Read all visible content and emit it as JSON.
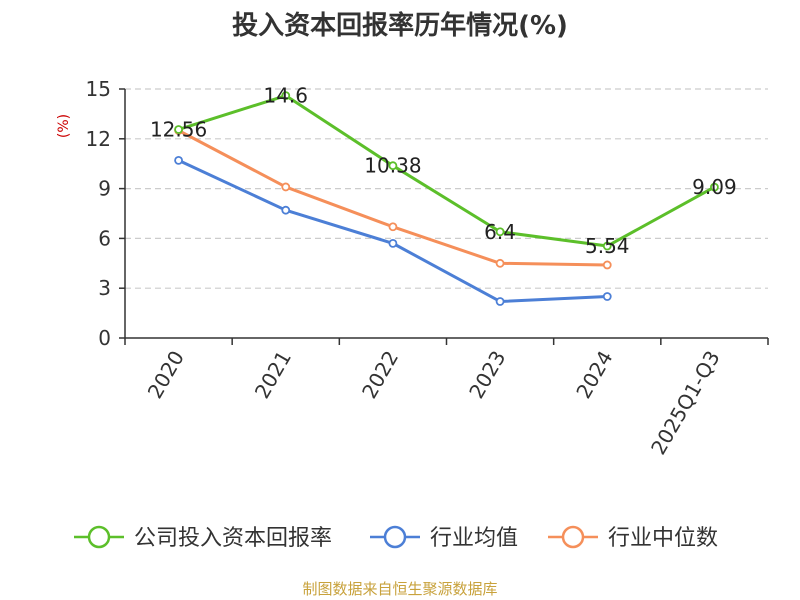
{
  "colors": {
    "axis": "#333333",
    "grid": "#cccccc",
    "source": "#c8a23c",
    "ylabel": "#cc0000"
  },
  "chart_data": {
    "type": "line",
    "title": "投入资本回报率历年情况(%)",
    "ylabel": "(%)",
    "xlabel": "",
    "categories": [
      "2020",
      "2021",
      "2022",
      "2023",
      "2024",
      "2025Q1-Q3"
    ],
    "ylim": [
      0,
      15
    ],
    "yticks": [
      0,
      3,
      6,
      9,
      12,
      15
    ],
    "grid": true,
    "legend_position": "bottom",
    "series": [
      {
        "name": "公司投入资本回报率",
        "color": "#5cbf2a",
        "values": [
          12.56,
          14.6,
          10.38,
          6.4,
          5.54,
          9.09
        ],
        "labels": [
          "12.56",
          "14.6",
          "10.38",
          "6.4",
          "5.54",
          "9.09"
        ]
      },
      {
        "name": "行业均值",
        "color": "#4c7fd6",
        "values": [
          10.7,
          7.7,
          5.7,
          2.2,
          2.5,
          null
        ],
        "labels": null
      },
      {
        "name": "行业中位数",
        "color": "#f58f5a",
        "values": [
          12.5,
          9.1,
          6.7,
          4.5,
          4.4,
          null
        ],
        "labels": null
      }
    ],
    "source": "制图数据来自恒生聚源数据库"
  }
}
